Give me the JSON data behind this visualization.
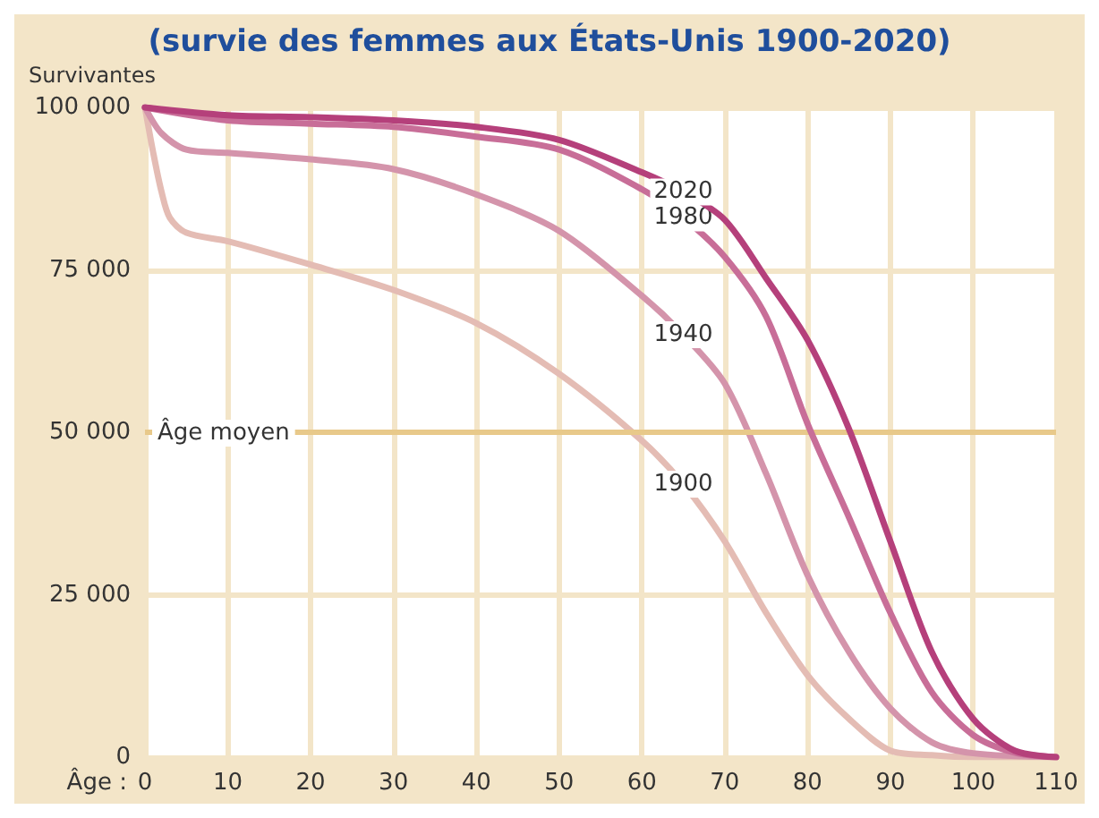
{
  "chart_data": {
    "type": "line",
    "title": "(survie des femmes aux États-Unis 1900-2020)",
    "xlabel": "Âge :",
    "ylabel": "Survivantes",
    "xlim": [
      0,
      110
    ],
    "xticks": [
      0,
      10,
      20,
      30,
      40,
      50,
      60,
      70,
      80,
      90,
      100,
      110
    ],
    "ylim": [
      0,
      100000
    ],
    "yticks": [
      {
        "value": 0,
        "label": "0"
      },
      {
        "value": 25000,
        "label": "25 000"
      },
      {
        "value": 50000,
        "label": "50 000"
      },
      {
        "value": 75000,
        "label": "75 000"
      },
      {
        "value": 100000,
        "label": "100 000"
      }
    ],
    "grid": true,
    "legend": false,
    "marker": "none",
    "line_style": "solid",
    "ref_lines": [
      {
        "axis": "y",
        "value": 50000,
        "label": "Âge moyen",
        "color": "#e8c98a"
      }
    ],
    "series": [
      {
        "name": "1900",
        "color": "#e4bcb4",
        "x": [
          0,
          1,
          2,
          3,
          5,
          10,
          20,
          30,
          40,
          50,
          60,
          65,
          70,
          75,
          80,
          85,
          90,
          95,
          100,
          110
        ],
        "values": [
          100000,
          93000,
          87000,
          83000,
          80700,
          79400,
          75800,
          71900,
          66800,
          59000,
          48700,
          42000,
          33200,
          22200,
          12600,
          5900,
          1000,
          300,
          0,
          0
        ]
      },
      {
        "name": "1940",
        "color": "#d494ab",
        "x": [
          0,
          2,
          5,
          10,
          20,
          30,
          40,
          50,
          60,
          65,
          70,
          75,
          80,
          85,
          90,
          95,
          100,
          110
        ],
        "values": [
          100000,
          96000,
          93500,
          93000,
          92000,
          90500,
          86600,
          81000,
          71000,
          65000,
          57500,
          43600,
          28000,
          16200,
          7500,
          2300,
          600,
          0
        ]
      },
      {
        "name": "1980",
        "color": "#c86e98",
        "x": [
          0,
          10,
          20,
          30,
          40,
          50,
          60,
          65,
          70,
          75,
          80,
          85,
          90,
          95,
          100,
          105,
          110
        ],
        "values": [
          100000,
          98000,
          97500,
          97000,
          95500,
          93500,
          87400,
          83000,
          77000,
          67800,
          51300,
          36900,
          22200,
          10000,
          3400,
          700,
          0
        ]
      },
      {
        "name": "2020",
        "color": "#b5407b",
        "x": [
          0,
          10,
          20,
          30,
          40,
          50,
          60,
          65,
          70,
          75,
          80,
          85,
          90,
          95,
          100,
          105,
          110
        ],
        "values": [
          100000,
          98800,
          98500,
          98000,
          97000,
          95000,
          90000,
          87000,
          82700,
          73700,
          64200,
          50500,
          33200,
          16200,
          5900,
          1000,
          0
        ]
      }
    ]
  }
}
